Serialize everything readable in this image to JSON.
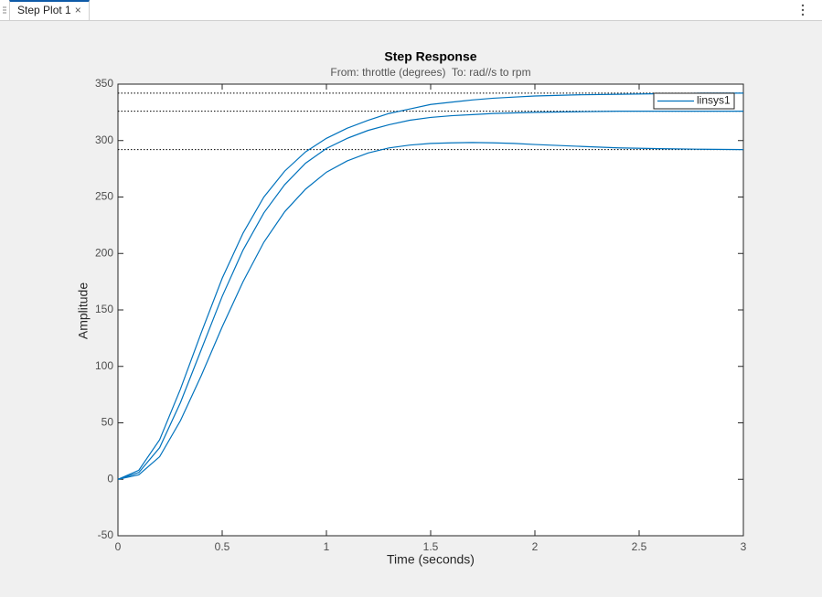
{
  "tab": {
    "label": "Step Plot 1"
  },
  "chart_data": {
    "type": "line",
    "title": "Step Response",
    "subtitle": "From: throttle (degrees)  To: rad//s to rpm",
    "xlabel": "Time (seconds)",
    "ylabel": "Amplitude",
    "x": [
      0,
      0.1,
      0.2,
      0.3,
      0.4,
      0.5,
      0.6,
      0.7,
      0.8,
      0.9,
      1.0,
      1.1,
      1.2,
      1.3,
      1.4,
      1.5,
      1.6,
      1.7,
      1.8,
      1.9,
      2.0,
      2.2,
      2.4,
      2.6,
      2.8,
      3.0
    ],
    "series": [
      {
        "name": "linsys1",
        "color": "#0072bd",
        "values": [
          0,
          8,
          35,
          80,
          130,
          178,
          218,
          250,
          273,
          290,
          302,
          311,
          318,
          324,
          328,
          332,
          334,
          336,
          337.5,
          338.5,
          339.5,
          340.5,
          341,
          341.5,
          342,
          342
        ]
      },
      {
        "color": "#0072bd",
        "values": [
          0,
          6,
          28,
          68,
          115,
          162,
          203,
          236,
          261,
          280,
          293,
          302,
          309,
          314,
          318,
          320.5,
          322,
          323,
          324,
          324.5,
          325,
          325.5,
          326,
          326,
          326,
          326
        ]
      },
      {
        "color": "#0072bd",
        "values": [
          0,
          4,
          20,
          52,
          92,
          135,
          175,
          210,
          237,
          257,
          272,
          282,
          289,
          293.5,
          296,
          297.5,
          298,
          298.3,
          298,
          297.5,
          296.5,
          295,
          293.5,
          292.8,
          292.3,
          292
        ]
      }
    ],
    "steady_state": [
      342,
      326,
      292
    ],
    "steady_state_color": "#000000",
    "xlim": [
      0,
      3
    ],
    "ylim": [
      -50,
      350
    ],
    "xticks": [
      0,
      0.5,
      1,
      1.5,
      2,
      2.5,
      3
    ],
    "yticks": [
      -50,
      0,
      50,
      100,
      150,
      200,
      250,
      300,
      350
    ],
    "grid": false,
    "legend": "upper right"
  }
}
